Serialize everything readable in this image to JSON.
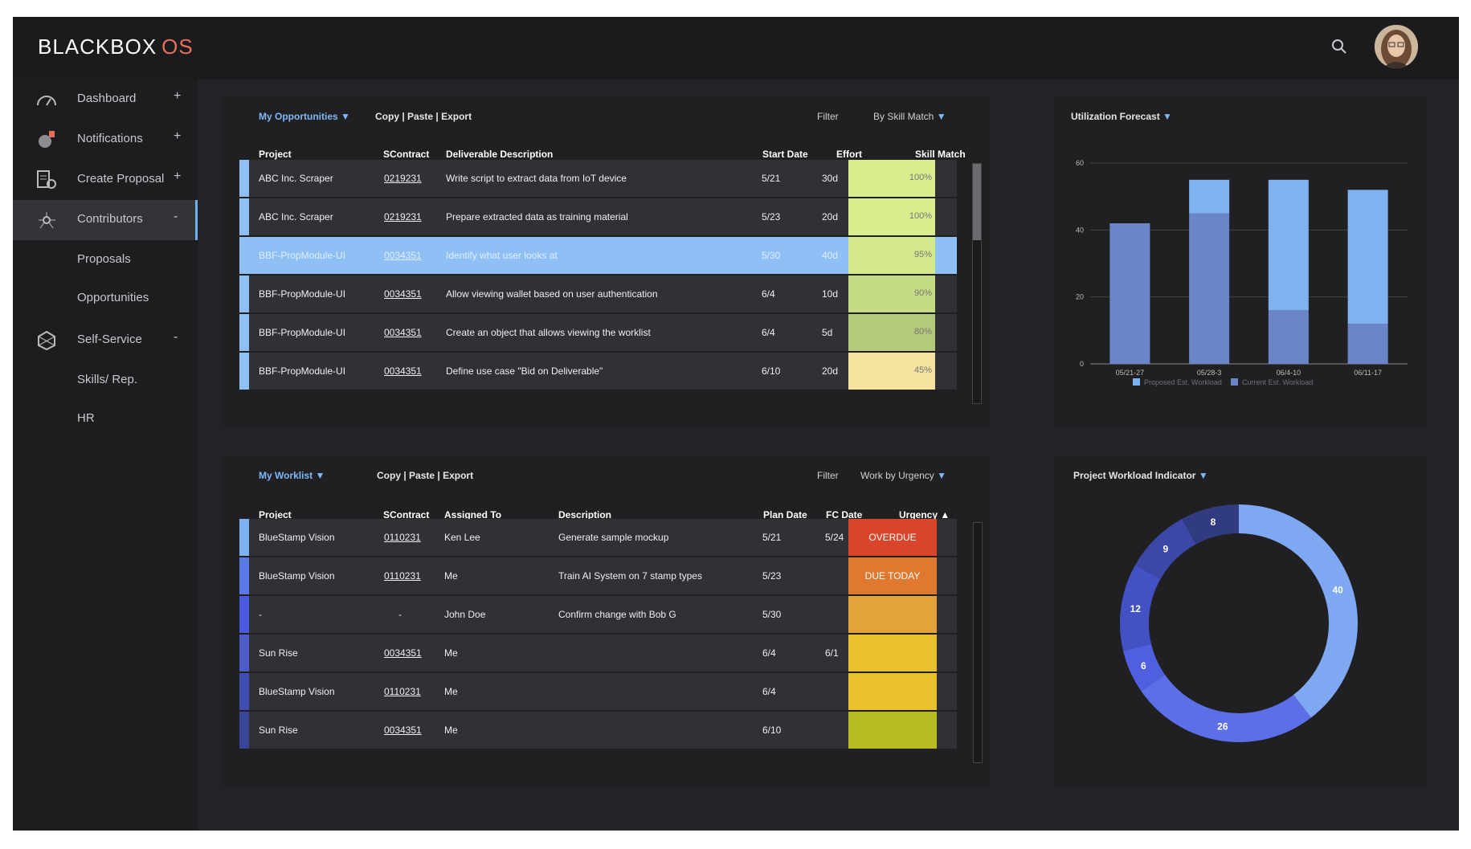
{
  "app": {
    "brand_main": "BLACKBOX",
    "brand_accent": "OS"
  },
  "sidebar": {
    "items": [
      {
        "label": "Dashboard",
        "toggle": "+",
        "icon": "gauge-icon"
      },
      {
        "label": "Notifications",
        "toggle": "+",
        "icon": "bell-icon"
      },
      {
        "label": "Create Proposal",
        "toggle": "+",
        "icon": "proposal-icon"
      },
      {
        "label": "Contributors",
        "toggle": "-",
        "icon": "network-icon"
      },
      {
        "label": "Proposals"
      },
      {
        "label": "Opportunities"
      },
      {
        "label": "Self-Service",
        "toggle": "-",
        "icon": "hexagon-icon"
      },
      {
        "label": "Skills/ Rep."
      },
      {
        "label": "HR"
      }
    ]
  },
  "opportunities": {
    "title": "My Opportunities ▼",
    "actions": "Copy | Paste | Export",
    "filter_label": "Filter",
    "filter_value": "By Skill Match",
    "filter_caret": "▼",
    "headers": {
      "project": "Project",
      "contract": "SContract",
      "description": "Deliverable Description",
      "start": "Start Date",
      "effort": "Effort",
      "skill": "Skill Match"
    },
    "rows": [
      {
        "project": "ABC Inc. Scraper",
        "contract": "0219231",
        "description": "Write script to extract data from IoT device",
        "start": "5/21",
        "effort": "30d",
        "skill": "100%"
      },
      {
        "project": "ABC Inc. Scraper",
        "contract": "0219231",
        "description": "Prepare extracted data as training material",
        "start": "5/23",
        "effort": "20d",
        "skill": "100%"
      },
      {
        "project": "BBF-PropModule-UI",
        "contract": "0034351",
        "description": "Identify what user looks at",
        "start": "5/30",
        "effort": "40d",
        "skill": "95%"
      },
      {
        "project": "BBF-PropModule-UI",
        "contract": "0034351",
        "description": "Allow viewing wallet based on user authentication",
        "start": "6/4",
        "effort": "10d",
        "skill": "90%"
      },
      {
        "project": "BBF-PropModule-UI",
        "contract": "0034351",
        "description": "Create an object that allows viewing the worklist",
        "start": "6/4",
        "effort": "5d",
        "skill": "80%"
      },
      {
        "project": "BBF-PropModule-UI",
        "contract": "0034351",
        "description": "Define use case \"Bid on Deliverable\"",
        "start": "6/10",
        "effort": "20d",
        "skill": "45%"
      }
    ],
    "skill_colors": [
      "#d9ec8e",
      "#d9ec8e",
      "#d3e88a",
      "#c6dc84",
      "#b5c97a",
      "#f5e29e"
    ]
  },
  "worklist": {
    "title": "My Worklist ▼",
    "actions": "Copy | Paste | Export",
    "filter_label": "Filter",
    "filter_value": "Work by Urgency",
    "filter_caret": "▼",
    "headers": {
      "project": "Project",
      "contract": "SContract",
      "assigned": "Assigned To",
      "description": "Description",
      "plan": "Plan Date",
      "fc": "FC Date",
      "urgency": "Urgency ▲"
    },
    "rows": [
      {
        "project": "BlueStamp Vision",
        "contract": "0110231",
        "assigned": "Ken Lee",
        "description": "Generate sample mockup",
        "plan": "5/21",
        "fc": "5/24",
        "urgency": "OVERDUE"
      },
      {
        "project": "BlueStamp Vision",
        "contract": "0110231",
        "assigned": "Me",
        "description": "Train AI System on 7 stamp types",
        "plan": "5/23",
        "fc": "",
        "urgency": "DUE TODAY"
      },
      {
        "project": "-",
        "contract": "-",
        "assigned": "John Doe",
        "description": "Confirm change with  Bob G",
        "plan": "5/30",
        "fc": "",
        "urgency": ""
      },
      {
        "project": "Sun Rise",
        "contract": "0034351",
        "assigned": "Me",
        "description": "",
        "plan": "6/4",
        "fc": "6/1",
        "urgency": ""
      },
      {
        "project": "BlueStamp Vision",
        "contract": "0110231",
        "assigned": "Me",
        "description": "",
        "plan": "6/4",
        "fc": "",
        "urgency": ""
      },
      {
        "project": "Sun Rise",
        "contract": "0034351",
        "assigned": "Me",
        "description": "",
        "plan": "6/10",
        "fc": "",
        "urgency": ""
      }
    ],
    "urgency_colors": [
      "#d9442a",
      "#e0782f",
      "#e3a33b",
      "#e9c12e",
      "#e9c12e",
      "#b6bb24"
    ],
    "accent_colors": [
      "#7fb2f0",
      "#5a78e6",
      "#4a5ae0",
      "#4c5cc8",
      "#3e4db0",
      "#3a4598"
    ]
  },
  "chart_data": [
    {
      "type": "bar",
      "title": "Utilization Forecast",
      "title_caret": "▼",
      "categories": [
        "05/21-27",
        "05/28-3",
        "06/4-10",
        "06/11-17"
      ],
      "series": [
        {
          "name": "Proposed Est. Workload",
          "values": [
            0,
            10,
            39,
            40
          ],
          "color": "#7fb2f0"
        },
        {
          "name": "Current Est. Workload",
          "values": [
            42,
            45,
            16,
            12
          ],
          "color": "#6b86c8"
        }
      ],
      "stacked": true,
      "yticks": [
        "0",
        "20",
        "40",
        "60"
      ],
      "ylim": [
        0,
        60
      ],
      "legend": "bottom"
    },
    {
      "type": "pie",
      "title": "Project Workload Indicator",
      "title_caret": "▼",
      "donut": true,
      "labels": [
        "40",
        "26",
        "6",
        "12",
        "9",
        "8"
      ],
      "values": [
        40,
        26,
        6,
        12,
        9,
        8
      ],
      "colors": [
        "#7fa8f2",
        "#5c6fe8",
        "#4f5fe0",
        "#4351c4",
        "#3c48a8",
        "#313b80"
      ]
    }
  ]
}
